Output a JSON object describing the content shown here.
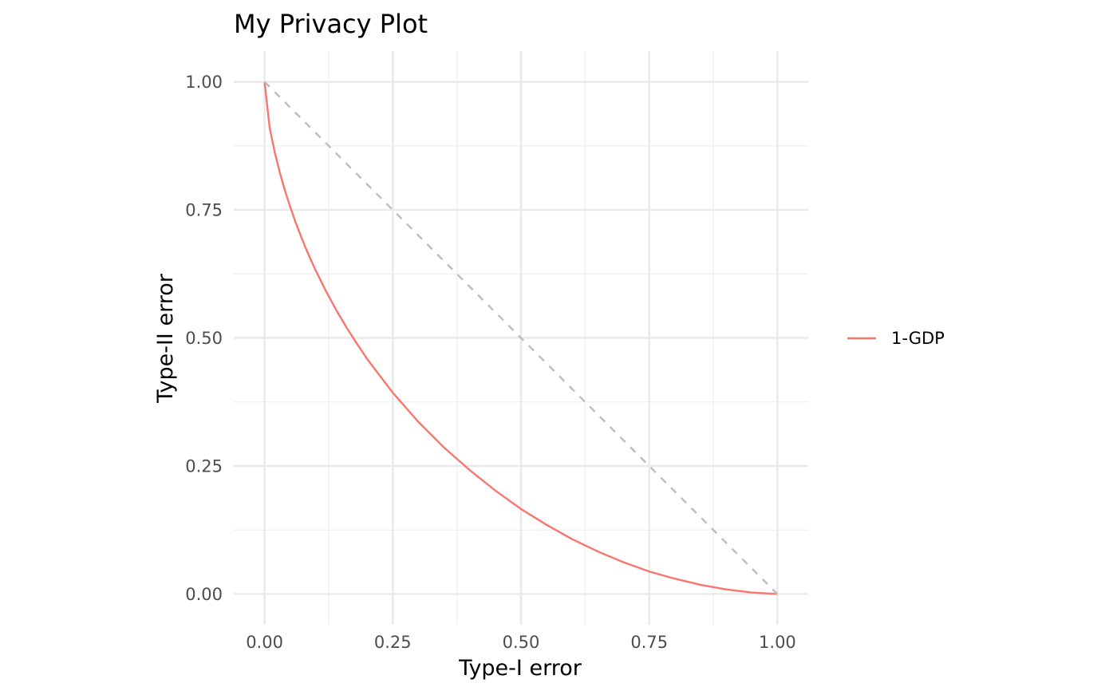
{
  "chart_data": {
    "type": "line",
    "title": "My Privacy Plot",
    "xlabel": "Type-I error",
    "ylabel": "Type-II error",
    "xlim": [
      -0.06,
      1.06
    ],
    "ylim": [
      -0.06,
      1.06
    ],
    "x_ticks": [
      0,
      0.25,
      0.5,
      0.75,
      1
    ],
    "x_tick_labels": [
      "0.00",
      "0.25",
      "0.50",
      "0.75",
      "1.00"
    ],
    "y_ticks": [
      0,
      0.25,
      0.5,
      0.75,
      1
    ],
    "y_tick_labels": [
      "0.00",
      "0.25",
      "0.50",
      "0.75",
      "1.00"
    ],
    "x_minor_ticks": [
      0.125,
      0.375,
      0.625,
      0.875
    ],
    "y_minor_ticks": [
      0.125,
      0.375,
      0.625,
      0.875
    ],
    "grid": true,
    "legend_position": "right",
    "series": [
      {
        "name": "1-GDP",
        "color": "#F8766D",
        "points": [
          [
            0,
            1
          ],
          [
            0.01,
            0.91
          ],
          [
            0.02,
            0.862
          ],
          [
            0.03,
            0.822
          ],
          [
            0.04,
            0.787
          ],
          [
            0.05,
            0.756
          ],
          [
            0.06,
            0.727
          ],
          [
            0.07,
            0.701
          ],
          [
            0.08,
            0.676
          ],
          [
            0.09,
            0.653
          ],
          [
            0.1,
            0.631
          ],
          [
            0.12,
            0.591
          ],
          [
            0.14,
            0.554
          ],
          [
            0.16,
            0.52
          ],
          [
            0.18,
            0.489
          ],
          [
            0.2,
            0.459
          ],
          [
            0.25,
            0.393
          ],
          [
            0.3,
            0.336
          ],
          [
            0.35,
            0.286
          ],
          [
            0.4,
            0.242
          ],
          [
            0.45,
            0.202
          ],
          [
            0.5,
            0.166
          ],
          [
            0.55,
            0.135
          ],
          [
            0.6,
            0.107
          ],
          [
            0.65,
            0.083
          ],
          [
            0.7,
            0.062
          ],
          [
            0.75,
            0.044
          ],
          [
            0.8,
            0.03
          ],
          [
            0.85,
            0.018
          ],
          [
            0.9,
            0.009
          ],
          [
            0.95,
            0.003
          ],
          [
            1,
            0
          ]
        ]
      },
      {
        "name": "",
        "color": "#BDBDBD",
        "style": "dashed",
        "points": [
          [
            0,
            1
          ],
          [
            1,
            0
          ]
        ]
      }
    ],
    "legend_entries": [
      "1-GDP"
    ]
  }
}
